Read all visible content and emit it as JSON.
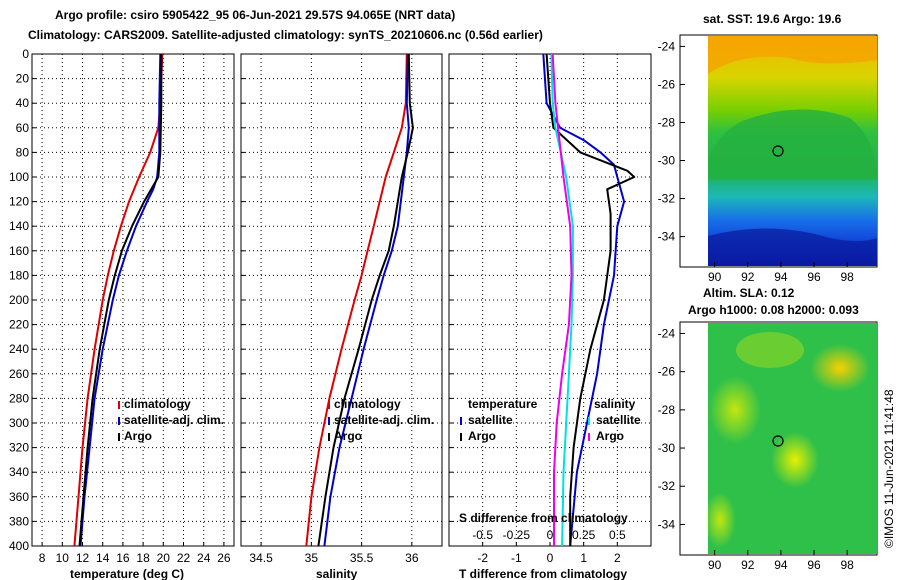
{
  "titles": {
    "line1": "Argo profile: csiro 5905422_95 06-Jun-2021 29.57S 94.065E (NRT data)",
    "line2": "Climatology: CARS2009. Satellite-adjusted climatology: synTS_20210606.nc (0.56d earlier)"
  },
  "maps": {
    "sst_title": "sat. SST: 19.6 Argo: 19.6",
    "sla_title1": "Altim. SLA: 0.12",
    "sla_title2": "Argo h1000: 0.08 h2000: 0.093",
    "watermark": "©IMOS 11-Jun-2021 11:41:48",
    "lon_ticks": [
      "90",
      "92",
      "94",
      "96",
      "98"
    ],
    "lat_ticks": [
      "-24",
      "-26",
      "-28",
      "-30",
      "-32",
      "-34"
    ],
    "profile_location": {
      "lon": 94.065,
      "lat": -29.57
    }
  },
  "colors": {
    "climatology": "#dd0000",
    "satellite": "#0000cc",
    "argo": "#000000",
    "sat_sal": "#00e0e0",
    "argo_sal": "#ee00ee"
  },
  "chart_data": [
    {
      "type": "line",
      "xlabel": "temperature (deg C)",
      "ylabel": "depth",
      "xlim": [
        7,
        27
      ],
      "ylim": [
        400,
        0
      ],
      "xticks": [
        8,
        10,
        12,
        14,
        16,
        18,
        20,
        22,
        24,
        26
      ],
      "xtick_labels": [
        "8",
        "10",
        "12",
        "14",
        "16",
        "18",
        "20",
        "22",
        "24",
        "26"
      ],
      "yticks": [
        0,
        20,
        40,
        60,
        80,
        100,
        120,
        140,
        160,
        180,
        200,
        220,
        240,
        260,
        280,
        300,
        320,
        340,
        360,
        380,
        400
      ],
      "ytick_labels": [
        "0",
        "20",
        "40",
        "60",
        "80",
        "100",
        "120",
        "140",
        "160",
        "180",
        "200",
        "220",
        "240",
        "260",
        "280",
        "300",
        "320",
        "340",
        "360",
        "380",
        "400"
      ],
      "legend": [
        "climatology",
        "satellite-adj. clim.",
        "Argo"
      ],
      "series": [
        {
          "name": "climatology",
          "color": "#dd0000",
          "depth": [
            0,
            40,
            60,
            80,
            100,
            120,
            140,
            160,
            180,
            200,
            240,
            280,
            320,
            360,
            400
          ],
          "values": [
            19.9,
            19.7,
            19.5,
            18.7,
            17.6,
            16.6,
            15.8,
            15.1,
            14.5,
            14.0,
            13.2,
            12.5,
            12.0,
            11.6,
            11.2
          ]
        },
        {
          "name": "satellite-adj. clim.",
          "color": "#0000cc",
          "depth": [
            0,
            40,
            80,
            100,
            110,
            120,
            140,
            160,
            180,
            200,
            240,
            280,
            320,
            360,
            400
          ],
          "values": [
            19.7,
            19.6,
            19.6,
            19.4,
            19.0,
            18.4,
            17.3,
            16.4,
            15.6,
            15.0,
            14.0,
            13.2,
            12.7,
            12.2,
            11.8
          ]
        },
        {
          "name": "Argo",
          "color": "#000000",
          "depth": [
            0,
            40,
            80,
            100,
            110,
            120,
            140,
            160,
            180,
            200,
            240,
            280,
            320,
            360,
            400
          ],
          "values": [
            19.8,
            19.8,
            19.7,
            19.5,
            18.8,
            18.1,
            16.9,
            15.9,
            15.2,
            14.6,
            13.7,
            13.0,
            12.5,
            12.1,
            11.7
          ]
        }
      ]
    },
    {
      "type": "line",
      "xlabel": "salinity",
      "ylabel": "depth",
      "xlim": [
        34.3,
        36.3
      ],
      "ylim": [
        400,
        0
      ],
      "xticks": [
        34.5,
        35,
        35.5,
        36
      ],
      "xtick_labels": [
        "34.5",
        "35",
        "35.5",
        "36"
      ],
      "legend": [
        "climatology",
        "satellite-adj. clim.",
        "Argo"
      ],
      "series": [
        {
          "name": "climatology",
          "color": "#dd0000",
          "depth": [
            0,
            40,
            60,
            80,
            100,
            120,
            140,
            160,
            180,
            200,
            240,
            280,
            320,
            360,
            400
          ],
          "values": [
            35.95,
            35.94,
            35.9,
            35.82,
            35.74,
            35.68,
            35.62,
            35.56,
            35.5,
            35.43,
            35.3,
            35.18,
            35.08,
            35.0,
            34.95
          ]
        },
        {
          "name": "satellite-adj. clim.",
          "color": "#0000cc",
          "depth": [
            0,
            40,
            60,
            80,
            100,
            120,
            140,
            160,
            180,
            200,
            240,
            280,
            320,
            360,
            400
          ],
          "values": [
            35.96,
            35.95,
            35.97,
            35.95,
            35.92,
            35.89,
            35.86,
            35.8,
            35.72,
            35.65,
            35.52,
            35.4,
            35.28,
            35.19,
            35.13
          ]
        },
        {
          "name": "Argo",
          "color": "#000000",
          "depth": [
            0,
            40,
            60,
            80,
            100,
            120,
            140,
            160,
            180,
            200,
            240,
            280,
            320,
            360,
            400
          ],
          "values": [
            35.97,
            35.98,
            36.01,
            35.96,
            35.9,
            35.86,
            35.82,
            35.77,
            35.68,
            35.6,
            35.47,
            35.33,
            35.22,
            35.14,
            35.07
          ]
        }
      ]
    },
    {
      "type": "line",
      "xlabel": "T difference from climatology",
      "xlabel_top": "S difference from climatology",
      "ylabel": "depth",
      "xlim": [
        -3,
        3
      ],
      "ylim": [
        400,
        0
      ],
      "xticks": [
        -2,
        -1,
        0,
        1,
        2
      ],
      "xtick_labels": [
        "-2",
        "-1",
        "0",
        "1",
        "2"
      ],
      "s_xticks": [
        -0.5,
        -0.25,
        0,
        0.25,
        0.5
      ],
      "s_xtick_labels": [
        "-0.5",
        "-0.25",
        "0",
        "0.25",
        "0.5"
      ],
      "legend_headers": [
        "temperature",
        "salinity"
      ],
      "legend": [
        "satellite",
        "Argo",
        "satellite",
        "Argo"
      ],
      "series": [
        {
          "name": "temperature satellite",
          "color": "#0000cc",
          "depth": [
            0,
            40,
            60,
            70,
            80,
            90,
            100,
            120,
            140,
            180,
            220,
            260,
            300,
            340,
            400
          ],
          "values": [
            -0.2,
            -0.1,
            0.3,
            1.0,
            1.5,
            1.9,
            2.0,
            2.2,
            2.0,
            1.9,
            1.6,
            1.4,
            1.1,
            0.8,
            0.6
          ]
        },
        {
          "name": "temperature Argo",
          "color": "#000000",
          "depth": [
            0,
            40,
            60,
            80,
            95,
            100,
            110,
            130,
            160,
            200,
            240,
            280,
            320,
            360,
            400
          ],
          "values": [
            -0.1,
            0.0,
            0.1,
            0.9,
            2.3,
            2.5,
            1.7,
            1.8,
            1.8,
            1.6,
            1.2,
            0.9,
            0.7,
            0.6,
            0.6
          ]
        },
        {
          "name": "salinity satellite",
          "color": "#00e0e0",
          "depth": [
            0,
            40,
            60,
            80,
            100,
            140,
            180,
            220,
            260,
            300,
            340,
            400
          ],
          "values": [
            0.01,
            0.02,
            0.04,
            0.08,
            0.12,
            0.17,
            0.17,
            0.16,
            0.14,
            0.12,
            0.1,
            0.09
          ]
        },
        {
          "name": "salinity Argo",
          "color": "#ee00ee",
          "depth": [
            0,
            40,
            60,
            80,
            100,
            140,
            180,
            220,
            260,
            300,
            340,
            400
          ],
          "values": [
            0.02,
            0.04,
            0.06,
            0.08,
            0.1,
            0.15,
            0.16,
            0.14,
            0.09,
            0.05,
            0.03,
            0.03
          ]
        }
      ]
    }
  ]
}
